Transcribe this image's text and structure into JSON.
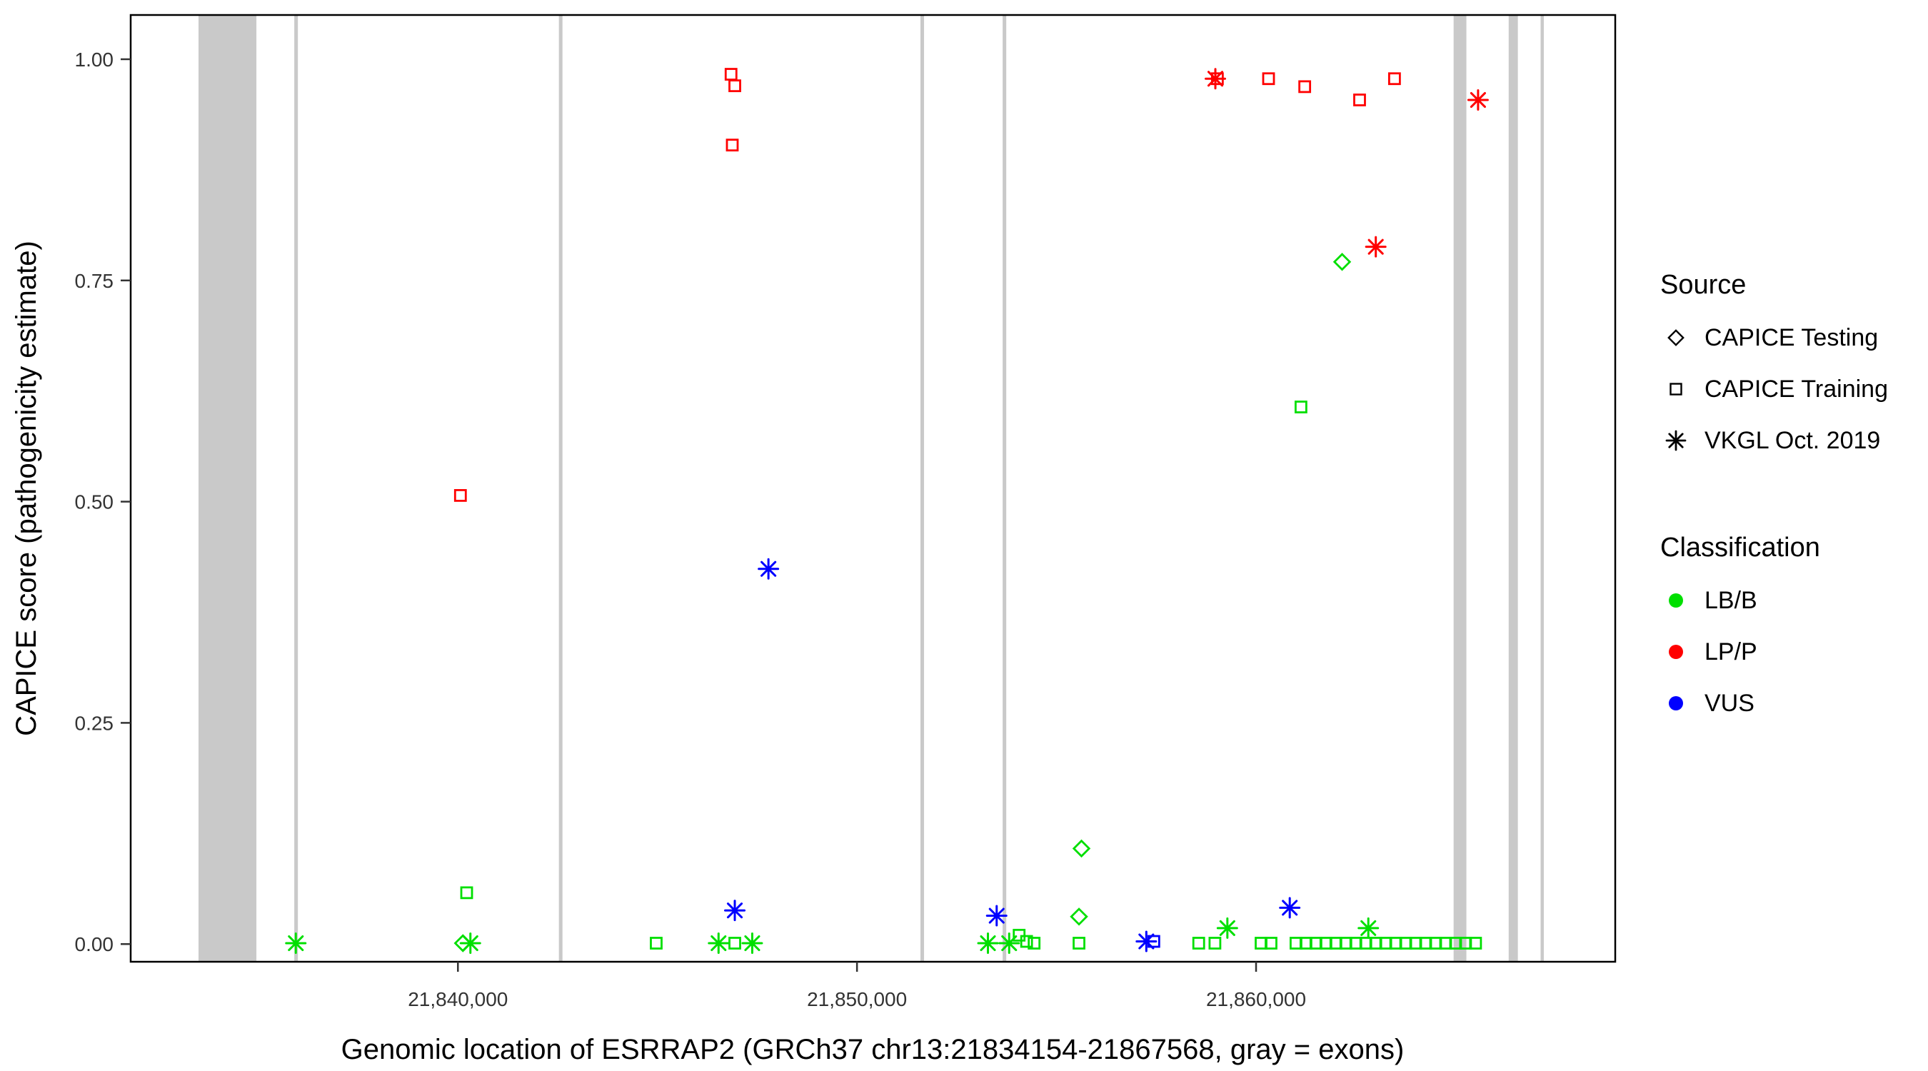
{
  "legend": {
    "source": {
      "title": "Source",
      "items": [
        {
          "label": "CAPICE Testing",
          "icon": "diamond-icon"
        },
        {
          "label": "CAPICE Training",
          "icon": "square-icon"
        },
        {
          "label": "VKGL Oct. 2019",
          "icon": "asterisk-icon"
        }
      ]
    },
    "classification": {
      "title": "Classification",
      "items": [
        {
          "label": "LB/B",
          "color": "#00DF00",
          "icon": "dot-icon"
        },
        {
          "label": "LP/P",
          "color": "#FF0000",
          "icon": "dot-icon"
        },
        {
          "label": "VUS",
          "color": "#0000FF",
          "icon": "dot-icon"
        }
      ]
    }
  },
  "chart_data": {
    "type": "scatter",
    "xlabel": "Genomic location of ESRRAP2 (GRCh37 chr13:21834154-21867568, gray = exons)",
    "ylabel": "CAPICE score (pathogenicity estimate)",
    "xlim": [
      21831800,
      21869000
    ],
    "ylim": [
      -0.02,
      1.05
    ],
    "x_ticks": [
      {
        "value": 21840000,
        "label": "21,840,000"
      },
      {
        "value": 21850000,
        "label": "21,850,000"
      },
      {
        "value": 21860000,
        "label": "21,860,000"
      }
    ],
    "y_ticks": [
      {
        "value": 0.0,
        "label": "0.00"
      },
      {
        "value": 0.25,
        "label": "0.25"
      },
      {
        "value": 0.5,
        "label": "0.50"
      },
      {
        "value": 0.75,
        "label": "0.75"
      },
      {
        "value": 1.0,
        "label": "1.00"
      }
    ],
    "shape_by": "source",
    "color_by": "classification",
    "shapes": {
      "CAPICE Testing": "diamond",
      "CAPICE Training": "square",
      "VKGL Oct. 2019": "asterisk"
    },
    "colors": {
      "LB/B": "#00DF00",
      "LP/P": "#FF0000",
      "VUS": "#0000FF"
    },
    "exon_color": "#C9C9C9",
    "exons": [
      [
        21833500,
        21834950
      ],
      [
        21835900,
        21835990
      ],
      [
        21842530,
        21842620
      ],
      [
        21851590,
        21851680
      ],
      [
        21853650,
        21853740
      ],
      [
        21864950,
        21865270
      ],
      [
        21866330,
        21866560
      ],
      [
        21867130,
        21867210
      ]
    ],
    "points": [
      {
        "x": 21846844,
        "y": 0.983,
        "class": "LP/P",
        "source": "CAPICE Training"
      },
      {
        "x": 21846938,
        "y": 0.97,
        "class": "LP/P",
        "source": "CAPICE Training"
      },
      {
        "x": 21846875,
        "y": 0.903,
        "class": "LP/P",
        "source": "CAPICE Training"
      },
      {
        "x": 21840063,
        "y": 0.507,
        "class": "LP/P",
        "source": "CAPICE Training"
      },
      {
        "x": 21859031,
        "y": 0.978,
        "class": "LP/P",
        "source": "CAPICE Training"
      },
      {
        "x": 21858980,
        "y": 0.978,
        "class": "LP/P",
        "source": "VKGL Oct. 2019"
      },
      {
        "x": 21860313,
        "y": 0.978,
        "class": "LP/P",
        "source": "CAPICE Training"
      },
      {
        "x": 21861219,
        "y": 0.969,
        "class": "LP/P",
        "source": "CAPICE Training"
      },
      {
        "x": 21862594,
        "y": 0.954,
        "class": "LP/P",
        "source": "CAPICE Training"
      },
      {
        "x": 21863469,
        "y": 0.978,
        "class": "LP/P",
        "source": "CAPICE Training"
      },
      {
        "x": 21863000,
        "y": 0.788,
        "class": "LP/P",
        "source": "VKGL Oct. 2019"
      },
      {
        "x": 21865563,
        "y": 0.954,
        "class": "LP/P",
        "source": "VKGL Oct. 2019"
      },
      {
        "x": 21862156,
        "y": 0.771,
        "class": "LB/B",
        "source": "CAPICE Testing"
      },
      {
        "x": 21861125,
        "y": 0.607,
        "class": "LB/B",
        "source": "CAPICE Training"
      },
      {
        "x": 21847781,
        "y": 0.424,
        "class": "VUS",
        "source": "VKGL Oct. 2019"
      },
      {
        "x": 21855625,
        "y": 0.108,
        "class": "LB/B",
        "source": "CAPICE Testing"
      },
      {
        "x": 21840219,
        "y": 0.058,
        "class": "LB/B",
        "source": "CAPICE Training"
      },
      {
        "x": 21846938,
        "y": 0.038,
        "class": "VUS",
        "source": "VKGL Oct. 2019"
      },
      {
        "x": 21860844,
        "y": 0.041,
        "class": "VUS",
        "source": "VKGL Oct. 2019"
      },
      {
        "x": 21853500,
        "y": 0.032,
        "class": "VUS",
        "source": "VKGL Oct. 2019"
      },
      {
        "x": 21855563,
        "y": 0.031,
        "class": "LB/B",
        "source": "CAPICE Testing"
      },
      {
        "x": 21859281,
        "y": 0.018,
        "class": "LB/B",
        "source": "VKGL Oct. 2019"
      },
      {
        "x": 21862813,
        "y": 0.018,
        "class": "LB/B",
        "source": "VKGL Oct. 2019"
      },
      {
        "x": 21854063,
        "y": 0.01,
        "class": "LB/B",
        "source": "CAPICE Training"
      },
      {
        "x": 21835938,
        "y": 0.001,
        "class": "LB/B",
        "source": "VKGL Oct. 2019"
      },
      {
        "x": 21840125,
        "y": 0.001,
        "class": "LB/B",
        "source": "CAPICE Testing"
      },
      {
        "x": 21840313,
        "y": 0.001,
        "class": "LB/B",
        "source": "VKGL Oct. 2019"
      },
      {
        "x": 21844969,
        "y": 0.001,
        "class": "LB/B",
        "source": "CAPICE Training"
      },
      {
        "x": 21846531,
        "y": 0.001,
        "class": "LB/B",
        "source": "VKGL Oct. 2019"
      },
      {
        "x": 21846938,
        "y": 0.001,
        "class": "LB/B",
        "source": "CAPICE Training"
      },
      {
        "x": 21847375,
        "y": 0.001,
        "class": "LB/B",
        "source": "VKGL Oct. 2019"
      },
      {
        "x": 21853281,
        "y": 0.001,
        "class": "LB/B",
        "source": "VKGL Oct. 2019"
      },
      {
        "x": 21853813,
        "y": 0.001,
        "class": "LB/B",
        "source": "VKGL Oct. 2019"
      },
      {
        "x": 21854250,
        "y": 0.003,
        "class": "LB/B",
        "source": "CAPICE Training"
      },
      {
        "x": 21854438,
        "y": 0.001,
        "class": "LB/B",
        "source": "CAPICE Training"
      },
      {
        "x": 21855563,
        "y": 0.001,
        "class": "LB/B",
        "source": "CAPICE Training"
      },
      {
        "x": 21857250,
        "y": 0.003,
        "class": "VUS",
        "source": "VKGL Oct. 2019"
      },
      {
        "x": 21857438,
        "y": 0.003,
        "class": "VUS",
        "source": "CAPICE Training"
      },
      {
        "x": 21858563,
        "y": 0.001,
        "class": "LB/B",
        "source": "CAPICE Training"
      },
      {
        "x": 21858969,
        "y": 0.001,
        "class": "LB/B",
        "source": "CAPICE Training"
      },
      {
        "x": 21860125,
        "y": 0.001,
        "class": "LB/B",
        "source": "CAPICE Training"
      },
      {
        "x": 21860375,
        "y": 0.001,
        "class": "LB/B",
        "source": "CAPICE Training"
      },
      {
        "x": 21861000,
        "y": 0.001,
        "class": "LB/B",
        "source": "CAPICE Training"
      },
      {
        "x": 21861250,
        "y": 0.001,
        "class": "LB/B",
        "source": "CAPICE Training"
      },
      {
        "x": 21861500,
        "y": 0.001,
        "class": "LB/B",
        "source": "CAPICE Training"
      },
      {
        "x": 21861750,
        "y": 0.001,
        "class": "LB/B",
        "source": "CAPICE Training"
      },
      {
        "x": 21862000,
        "y": 0.001,
        "class": "LB/B",
        "source": "CAPICE Training"
      },
      {
        "x": 21862250,
        "y": 0.001,
        "class": "LB/B",
        "source": "CAPICE Training"
      },
      {
        "x": 21862500,
        "y": 0.001,
        "class": "LB/B",
        "source": "CAPICE Training"
      },
      {
        "x": 21862750,
        "y": 0.001,
        "class": "LB/B",
        "source": "CAPICE Training"
      },
      {
        "x": 21863000,
        "y": 0.001,
        "class": "LB/B",
        "source": "CAPICE Training"
      },
      {
        "x": 21863250,
        "y": 0.001,
        "class": "LB/B",
        "source": "CAPICE Training"
      },
      {
        "x": 21863500,
        "y": 0.001,
        "class": "LB/B",
        "source": "CAPICE Training"
      },
      {
        "x": 21863750,
        "y": 0.001,
        "class": "LB/B",
        "source": "CAPICE Training"
      },
      {
        "x": 21864000,
        "y": 0.001,
        "class": "LB/B",
        "source": "CAPICE Training"
      },
      {
        "x": 21864250,
        "y": 0.001,
        "class": "LB/B",
        "source": "CAPICE Training"
      },
      {
        "x": 21864500,
        "y": 0.001,
        "class": "LB/B",
        "source": "CAPICE Training"
      },
      {
        "x": 21864750,
        "y": 0.001,
        "class": "LB/B",
        "source": "CAPICE Training"
      },
      {
        "x": 21865000,
        "y": 0.001,
        "class": "LB/B",
        "source": "CAPICE Training"
      },
      {
        "x": 21865250,
        "y": 0.001,
        "class": "LB/B",
        "source": "CAPICE Training"
      },
      {
        "x": 21865500,
        "y": 0.001,
        "class": "LB/B",
        "source": "CAPICE Training"
      }
    ]
  }
}
